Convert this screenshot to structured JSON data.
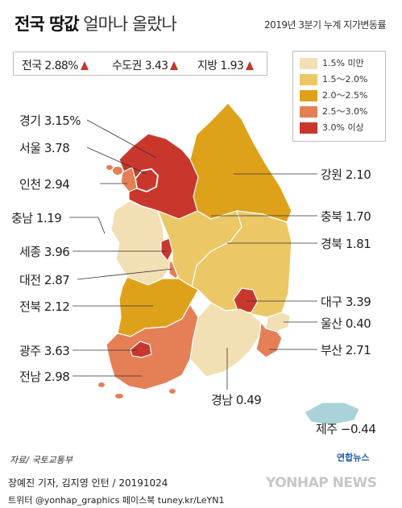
{
  "title_bold": "전국 땅값",
  "title_light": "얼마나 올랐나",
  "subtitle": "2019년 3분기 누계 지가변동률",
  "summary": [
    {
      "label": "전국",
      "value": "2.88%",
      "direction": "up"
    },
    {
      "label": "수도권",
      "value": "3.43",
      "direction": "up"
    },
    {
      "label": "지방",
      "value": "1.93",
      "direction": "up"
    }
  ],
  "legend": [
    {
      "label": "1.5% 미만",
      "color": "#f3dfb4"
    },
    {
      "label": "1.5～2.0%",
      "color": "#ebc766"
    },
    {
      "label": "2.0～2.5%",
      "color": "#dea21a"
    },
    {
      "label": "2.5～3.0%",
      "color": "#e57f56"
    },
    {
      "label": "3.0% 이상",
      "color": "#c9372c"
    }
  ],
  "regions": [
    {
      "name": "경기",
      "value": "3.15%"
    },
    {
      "name": "서울",
      "value": "3.78"
    },
    {
      "name": "인천",
      "value": "2.94"
    },
    {
      "name": "충남",
      "value": "1.19"
    },
    {
      "name": "세종",
      "value": "3.96"
    },
    {
      "name": "대전",
      "value": "2.87"
    },
    {
      "name": "전북",
      "value": "2.12"
    },
    {
      "name": "광주",
      "value": "3.63"
    },
    {
      "name": "전남",
      "value": "2.98"
    },
    {
      "name": "강원",
      "value": "2.10"
    },
    {
      "name": "충북",
      "value": "1.70"
    },
    {
      "name": "경북",
      "value": "1.81"
    },
    {
      "name": "대구",
      "value": "3.39"
    },
    {
      "name": "울산",
      "value": "0.40"
    },
    {
      "name": "부산",
      "value": "2.71"
    },
    {
      "name": "경남",
      "value": "0.49"
    },
    {
      "name": "제주",
      "value": "−0.44"
    }
  ],
  "source": "자료/ 국토교통부",
  "agency_small": "연합뉴스",
  "credit_line1": "장예진 기자, 김지영 인턴 / 20191024",
  "credit_line2": "트위터 @yonhap_graphics  페이스북 tuney.kr/LeYN1",
  "watermark": "YONHAP NEWS"
}
